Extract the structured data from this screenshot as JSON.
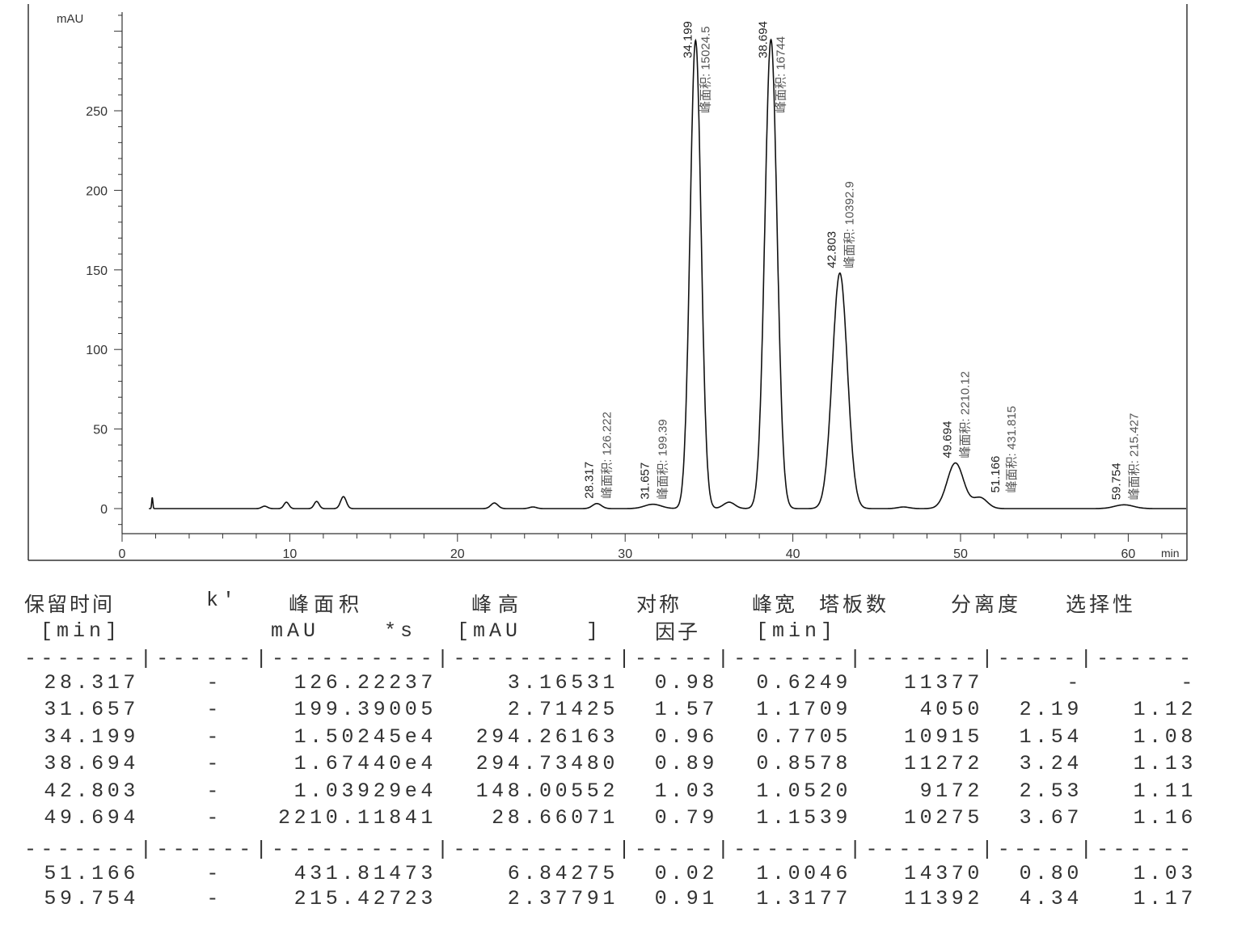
{
  "chart_data": {
    "type": "line",
    "ylabel": "mAU",
    "xlabel": "min",
    "xlim": [
      0,
      63.5
    ],
    "ylim": [
      -16,
      320
    ],
    "x_ticks": [
      "0",
      "10",
      "20",
      "30",
      "40",
      "50",
      "60"
    ],
    "y_ticks": [
      "0",
      "50",
      "100",
      "150",
      "200",
      "250"
    ],
    "grid": false,
    "peaks": [
      {
        "rt": 28.317,
        "rt_label": "28.317",
        "height": 3.16531,
        "width": 0.6249,
        "area_label": "峰面积: 126.222"
      },
      {
        "rt": 31.657,
        "rt_label": "31.657",
        "height": 2.71425,
        "width": 1.1709,
        "area_label": "峰面积: 199.39"
      },
      {
        "rt": 34.199,
        "rt_label": "34.199",
        "height": 294.26163,
        "width": 0.7705,
        "area_label": "峰面积: 15024.5"
      },
      {
        "rt": 38.694,
        "rt_label": "38.694",
        "height": 294.7348,
        "width": 0.8578,
        "area_label": "峰面积: 16744"
      },
      {
        "rt": 42.803,
        "rt_label": "42.803",
        "height": 148.00552,
        "width": 1.052,
        "area_label": "峰面积: 10392.9"
      },
      {
        "rt": 49.694,
        "rt_label": "49.694",
        "height": 28.66071,
        "width": 1.1539,
        "area_label": "峰面积: 2210.12"
      },
      {
        "rt": 51.166,
        "rt_label": "51.166",
        "height": 6.84275,
        "width": 1.0046,
        "area_label": "峰面积: 431.815"
      },
      {
        "rt": 59.754,
        "rt_label": "59.754",
        "height": 2.37791,
        "width": 1.3177,
        "area_label": "峰面积: 215.427"
      }
    ],
    "minor_peaks": [
      {
        "rt": 1.8,
        "height": 7,
        "width": 0.08
      },
      {
        "rt": 8.5,
        "height": 1.5,
        "width": 0.4
      },
      {
        "rt": 9.8,
        "height": 4,
        "width": 0.35
      },
      {
        "rt": 11.6,
        "height": 4.5,
        "width": 0.35
      },
      {
        "rt": 13.2,
        "height": 7.5,
        "width": 0.4
      },
      {
        "rt": 22.2,
        "height": 3.5,
        "width": 0.5
      },
      {
        "rt": 24.5,
        "height": 1,
        "width": 0.5
      },
      {
        "rt": 36.2,
        "height": 4,
        "width": 0.8
      },
      {
        "rt": 46.6,
        "height": 1,
        "width": 0.8
      }
    ]
  },
  "table": {
    "headers": [
      "保留时间",
      "k'",
      "峰面积",
      "峰高",
      "对称",
      "峰宽",
      "塔板数",
      "分离度",
      "选择性"
    ],
    "header_line2": {
      "symmetry": "因子",
      "rt_unit": "[min]",
      "area_unit": "mAU    *s",
      "height_unit": "[mAU    ]",
      "width_unit": "[min]"
    },
    "separator": "-------|------|----------|----------|-----|-------|-------|-----|------",
    "rows": [
      [
        "28.317",
        "-",
        "126.22237",
        "3.16531",
        "0.98",
        "0.6249",
        "11377",
        "-",
        "-"
      ],
      [
        "31.657",
        "-",
        "199.39005",
        "2.71425",
        "1.57",
        "1.1709",
        "4050",
        "2.19",
        "1.12"
      ],
      [
        "34.199",
        "-",
        "1.50245e4",
        "294.26163",
        "0.96",
        "0.7705",
        "10915",
        "1.54",
        "1.08"
      ],
      [
        "38.694",
        "-",
        "1.67440e4",
        "294.73480",
        "0.89",
        "0.8578",
        "11272",
        "3.24",
        "1.13"
      ],
      [
        "42.803",
        "-",
        "1.03929e4",
        "148.00552",
        "1.03",
        "1.0520",
        "9172",
        "2.53",
        "1.11"
      ],
      [
        "49.694",
        "-",
        "2210.11841",
        "28.66071",
        "0.79",
        "1.1539",
        "10275",
        "3.67",
        "1.16"
      ]
    ],
    "rows2": [
      [
        "51.166",
        "-",
        "431.81473",
        "6.84275",
        "0.02",
        "1.0046",
        "14370",
        "0.80",
        "1.03"
      ],
      [
        "59.754",
        "-",
        "215.42723",
        "2.37791",
        "0.91",
        "1.3177",
        "11392",
        "4.34",
        "1.17"
      ]
    ]
  }
}
